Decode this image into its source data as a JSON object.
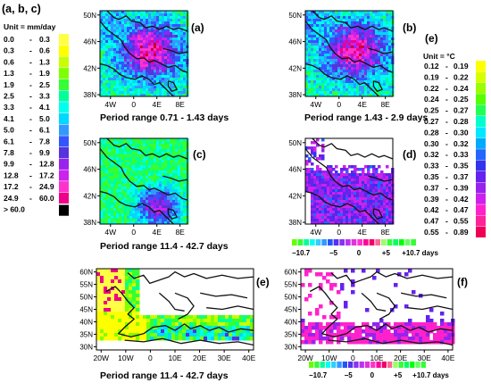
{
  "figure": {
    "abc_label": "(a, b, c)",
    "abc_unit": "Unit = mm/day",
    "e_label": "(e)",
    "e_unit": "Unit = °C"
  },
  "colors": {
    "bins": [
      "#ffff44",
      "#ffff00",
      "#c8ff00",
      "#80ff00",
      "#33ff33",
      "#00ff99",
      "#00ffee",
      "#00d8ff",
      "#3399ff",
      "#3355ff",
      "#5533dd",
      "#9922ee",
      "#cc22ee",
      "#ff33cc",
      "#ee0088",
      "#cc0033",
      "#000000"
    ],
    "tbins": [
      "#ffff00",
      "#d8ff00",
      "#99ff00",
      "#55ff00",
      "#22ff55",
      "#00ffcc",
      "#00e8ff",
      "#00aaff",
      "#2266ff",
      "#3333ee",
      "#6622ee",
      "#9922ee",
      "#cc22ee",
      "#ff22cc",
      "#ff2299",
      "#ee0055"
    ],
    "bar": [
      "#66ff00",
      "#33ff33",
      "#00ff99",
      "#00ffee",
      "#33ccff",
      "#3399ff",
      "#2255ff",
      "#5533ee",
      "#8833ee",
      "#bb33ee",
      "#dd33dd",
      "#ff33cc",
      "#ff0099",
      "#ee0066",
      "#ff6699",
      "#99ff66",
      "#33ff33",
      "#00ff66",
      "#00ff00",
      "#66ff66",
      "#33ff33"
    ]
  },
  "chart_data": [
    {
      "type": "heatmap",
      "id": "a",
      "panel_label": "(a)",
      "title": "Period range 0.71 - 1.43  days",
      "xticks": [
        "4W",
        "0",
        "4E",
        "8E"
      ],
      "yticks": [
        "50N",
        "46N",
        "42N",
        "38N"
      ],
      "xlim": [
        -6,
        10
      ],
      "ylim": [
        38,
        50
      ],
      "pattern": "high",
      "seed": 3
    },
    {
      "type": "heatmap",
      "id": "b",
      "panel_label": "(b)",
      "title": "Period range 1.43 - 2.9  days",
      "xticks": [
        "4W",
        "0",
        "4E",
        "8E"
      ],
      "yticks": [
        "50N",
        "46N",
        "42N",
        "38N"
      ],
      "xlim": [
        -6,
        10
      ],
      "ylim": [
        38,
        50
      ],
      "pattern": "high",
      "seed": 7
    },
    {
      "type": "heatmap",
      "id": "c",
      "panel_label": "(c)",
      "title": "Period range 11.4 - 42.7  days",
      "xticks": [
        "4W",
        "0",
        "4E",
        "8E"
      ],
      "yticks": [
        "50N",
        "46N",
        "42N",
        "38N"
      ],
      "xlim": [
        -6,
        10
      ],
      "ylim": [
        38,
        50
      ],
      "pattern": "mid",
      "seed": 11
    },
    {
      "type": "heatmap",
      "id": "d",
      "panel_label": "(d)",
      "xticks": [
        "4W",
        "0",
        "4E",
        "8E"
      ],
      "yticks": [
        "50N",
        "46N",
        "42N",
        "38N"
      ],
      "xlim": [
        -6,
        10
      ],
      "ylim": [
        38,
        50
      ],
      "pattern": "lag",
      "seed": 17
    },
    {
      "type": "heatmap",
      "id": "e_map",
      "panel_label": "(e)",
      "title": "Period range 11.4 - 42.7  days",
      "xticks": [
        "20W",
        "10W",
        "0",
        "10E",
        "20E",
        "30E",
        "40E"
      ],
      "yticks": [
        "60N",
        "55N",
        "50N",
        "45N",
        "40N",
        "35N",
        "30N"
      ],
      "xlim": [
        -22,
        45
      ],
      "ylim": [
        27,
        62
      ],
      "pattern": "wide",
      "seed": 23
    },
    {
      "type": "heatmap",
      "id": "f",
      "panel_label": "(f)",
      "xticks": [
        "20W",
        "10W",
        "0",
        "10E",
        "20E",
        "30E",
        "40E"
      ],
      "yticks": [
        "60N",
        "55N",
        "50N",
        "45N",
        "40N",
        "35N",
        "30N"
      ],
      "xlim": [
        -22,
        45
      ],
      "ylim": [
        27,
        62
      ],
      "pattern": "widelag",
      "seed": 31
    },
    {
      "type": "table",
      "id": "legend_abc",
      "rows": [
        {
          "lo": "0.0",
          "hi": "0.3"
        },
        {
          "lo": "0.3",
          "hi": "0.6"
        },
        {
          "lo": "0.6",
          "hi": "1.3"
        },
        {
          "lo": "1.3",
          "hi": "1.9"
        },
        {
          "lo": "1.9",
          "hi": "2.5"
        },
        {
          "lo": "2.5",
          "hi": "3.3"
        },
        {
          "lo": "3.3",
          "hi": "4.1"
        },
        {
          "lo": "4.1",
          "hi": "5.0"
        },
        {
          "lo": "5.0",
          "hi": "6.1"
        },
        {
          "lo": "6.1",
          "hi": "7.8"
        },
        {
          "lo": "7.8",
          "hi": "9.9"
        },
        {
          "lo": "9.9",
          "hi": "12.8"
        },
        {
          "lo": "12.8",
          "hi": "17.2"
        },
        {
          "lo": "17.2",
          "hi": "24.9"
        },
        {
          "lo": "24.9",
          "hi": "60.0"
        },
        {
          "lo": "> 60.0",
          "hi": ""
        }
      ]
    },
    {
      "type": "table",
      "id": "legend_e",
      "rows": [
        {
          "lo": "0.12",
          "hi": "0.19"
        },
        {
          "lo": "0.19",
          "hi": "0.22"
        },
        {
          "lo": "0.22",
          "hi": "0.24"
        },
        {
          "lo": "0.24",
          "hi": "0.25"
        },
        {
          "lo": "0.25",
          "hi": "0.27"
        },
        {
          "lo": "0.27",
          "hi": "0.28"
        },
        {
          "lo": "0.28",
          "hi": "0.30"
        },
        {
          "lo": "0.30",
          "hi": "0.32"
        },
        {
          "lo": "0.32",
          "hi": "0.33"
        },
        {
          "lo": "0.33",
          "hi": "0.35"
        },
        {
          "lo": "0.35",
          "hi": "0.37"
        },
        {
          "lo": "0.37",
          "hi": "0.39"
        },
        {
          "lo": "0.39",
          "hi": "0.42"
        },
        {
          "lo": "0.42",
          "hi": "0.47"
        },
        {
          "lo": "0.47",
          "hi": "0.55"
        },
        {
          "lo": "0.55",
          "hi": "0.89"
        }
      ]
    },
    {
      "type": "table",
      "id": "lag_colorbar",
      "labels": [
        "−10.7",
        "−5",
        "0",
        "+5",
        "+10.7 days"
      ]
    }
  ]
}
